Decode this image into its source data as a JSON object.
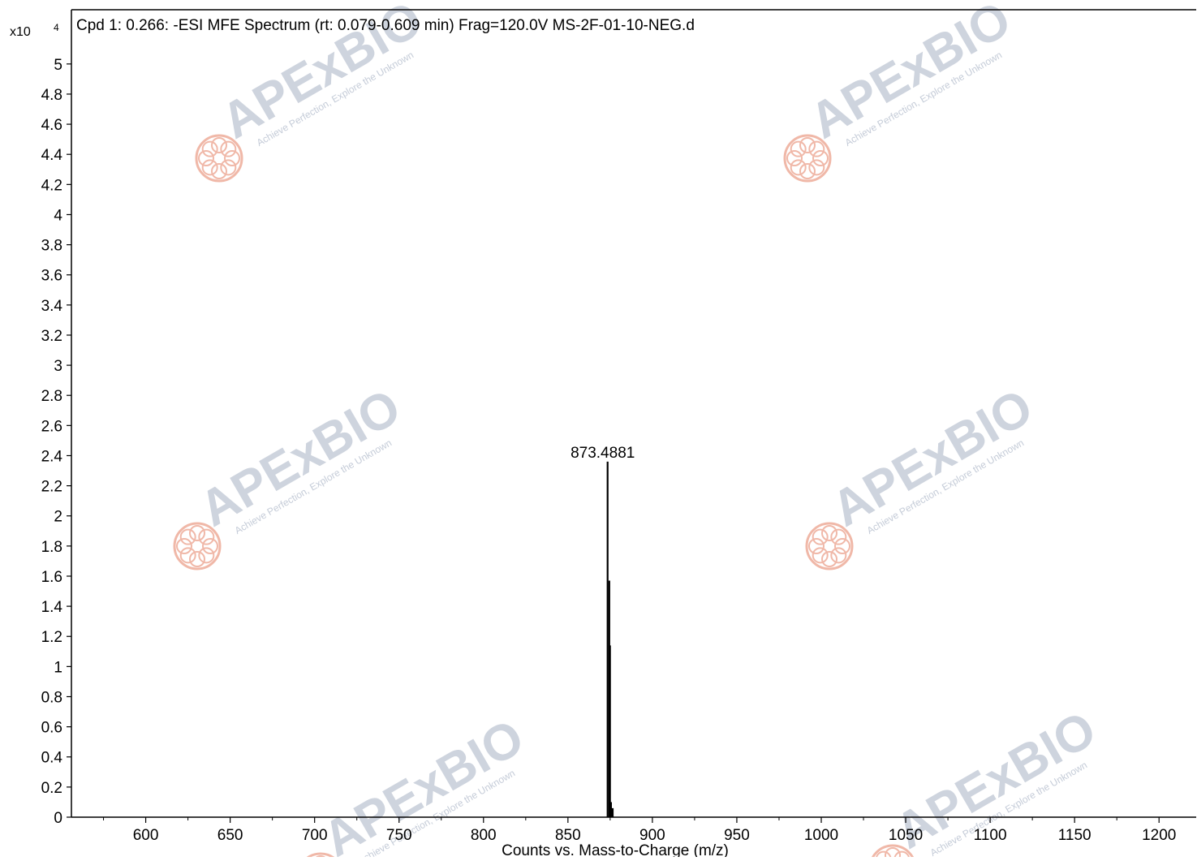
{
  "chart_data": {
    "type": "bar",
    "title": "Cpd 1: 0.266: -ESI MFE Spectrum (rt: 0.079-0.609 min) Frag=120.0V MS-2F-01-10-NEG.d",
    "xlabel": "Counts vs. Mass-to-Charge (m/z)",
    "ylabel": "",
    "y_multiplier": "x10",
    "y_multiplier_exponent": "4",
    "xlim": [
      556,
      1222
    ],
    "ylim": [
      0,
      5.36
    ],
    "x_ticks": [
      600,
      650,
      700,
      750,
      800,
      850,
      900,
      950,
      1000,
      1050,
      1100,
      1150,
      1200
    ],
    "y_ticks": [
      0,
      0.2,
      0.4,
      0.6,
      0.8,
      1,
      1.2,
      1.4,
      1.6,
      1.8,
      2,
      2.2,
      2.4,
      2.6,
      2.8,
      3,
      3.2,
      3.4,
      3.6,
      3.8,
      4,
      4.2,
      4.4,
      4.6,
      4.8,
      5
    ],
    "x_tick_labels": [
      "600",
      "650",
      "700",
      "750",
      "800",
      "850",
      "900",
      "950",
      "1000",
      "1050",
      "1100",
      "1150",
      "1200"
    ],
    "y_tick_labels": [
      "0",
      "0.2",
      "0.4",
      "0.6",
      "0.8",
      "1",
      "1.2",
      "1.4",
      "1.6",
      "1.8",
      "2",
      "2.2",
      "2.4",
      "2.6",
      "2.8",
      "3",
      "3.2",
      "3.4",
      "3.6",
      "3.8",
      "4",
      "4.2",
      "4.4",
      "4.6",
      "4.8",
      "5"
    ],
    "peaks": [
      {
        "mz": 873.4881,
        "intensity": 2.36
      },
      {
        "mz": 874.49,
        "intensity": 1.57
      },
      {
        "mz": 874.9,
        "intensity": 1.14
      },
      {
        "mz": 875.5,
        "intensity": 0.1
      },
      {
        "mz": 876.5,
        "intensity": 0.06
      }
    ],
    "annotations": [
      {
        "label": "873.4881",
        "mz": 873.4881,
        "intensity": 2.36
      }
    ],
    "grid": false,
    "colors": {
      "peak": "#000000",
      "axis": "#000000"
    }
  },
  "watermark": {
    "brand": "APExBIO",
    "tagline": "Achieve Perfection, Explore the Unknown",
    "colors": {
      "text": "#c5ccd8",
      "accent": "#f3c48a",
      "logo": "#f0b8a8"
    }
  }
}
